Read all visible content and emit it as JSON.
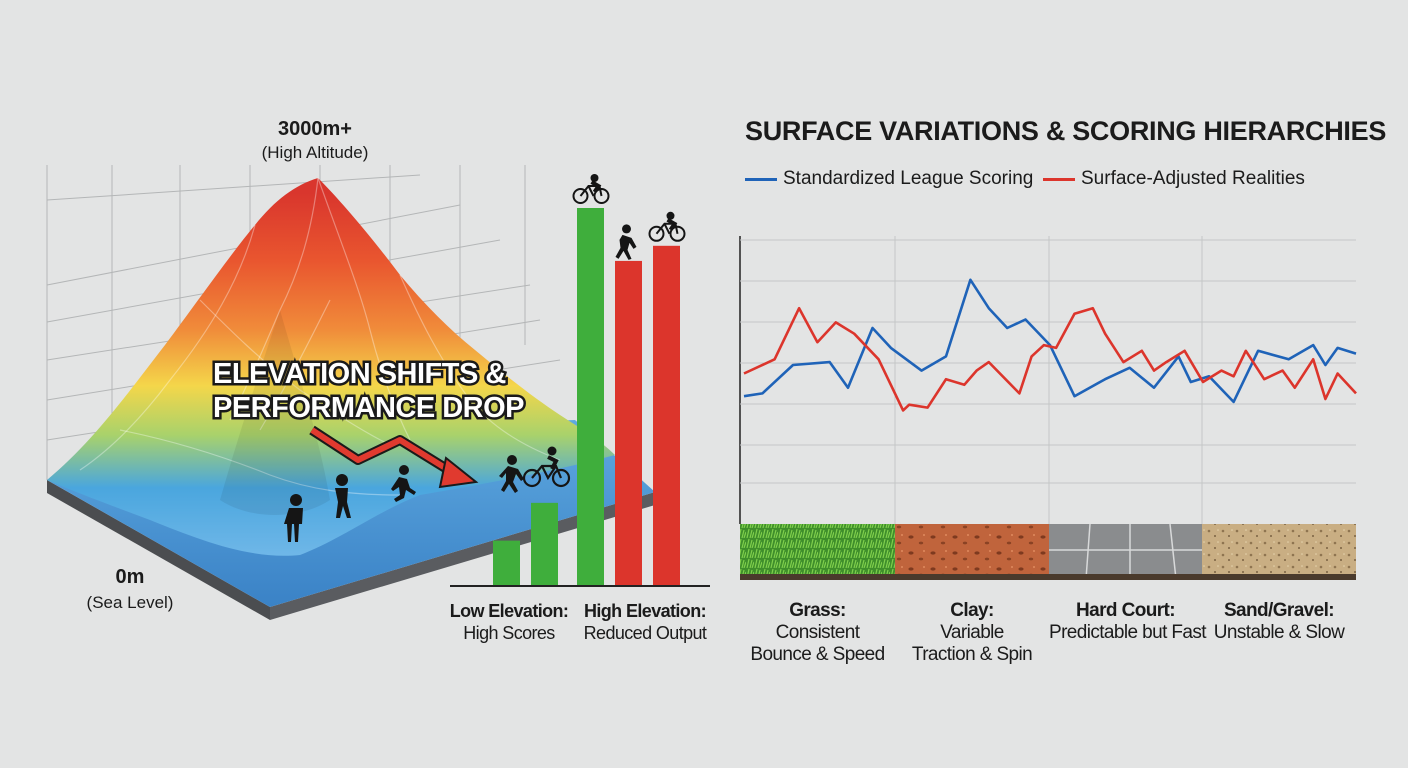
{
  "elevation_panel": {
    "top_label": "3000m+",
    "top_sublabel": "(High Altitude)",
    "bottom_label": "0m",
    "bottom_sublabel": "(Sea Level)",
    "headline_line1": "ELEVATION SHIFTS &",
    "headline_line2": "PERFORMANCE DROP",
    "icons": [
      "standing-person-icon",
      "walking-person-icon",
      "running-person-icon",
      "pushing-person-icon",
      "cyclist-icon"
    ],
    "gradient_colors": [
      "#d9362d",
      "#f08b3a",
      "#f4d64a",
      "#a9d26b",
      "#4aa6de"
    ]
  },
  "chart_data": [
    {
      "type": "bar",
      "title": "",
      "groups": [
        {
          "label": "Low Elevation:",
          "sublabel": "High Scores"
        },
        {
          "label": "High Elevation:",
          "sublabel": "Reduced Output"
        }
      ],
      "bars": [
        {
          "group": 0,
          "value": 12,
          "color": "#3fae3c"
        },
        {
          "group": 0,
          "value": 22,
          "color": "#3fae3c"
        },
        {
          "group": 0,
          "value": 100,
          "color": "#3fae3c",
          "icon": "cyclist-icon"
        },
        {
          "group": 1,
          "value": 86,
          "color": "#dc352c",
          "icon": "pushing-person-icon"
        },
        {
          "group": 1,
          "value": 90,
          "color": "#dc352c",
          "icon": "cyclist-icon"
        }
      ],
      "ylim": [
        0,
        100
      ]
    },
    {
      "type": "line",
      "title": "SURFACE VARIATIONS & SCORING HIERARCHIES",
      "ylim": [
        0,
        100
      ],
      "series": [
        {
          "name": "Standardized League Scoring",
          "color": "#1f63b8",
          "x": [
            0,
            3,
            8,
            14,
            17,
            21,
            24,
            29,
            33,
            37,
            40,
            43,
            46,
            50,
            54,
            59,
            63,
            67,
            71,
            73,
            76,
            80,
            84,
            89,
            93,
            95,
            97,
            100
          ],
          "y": [
            45,
            46,
            56,
            57,
            48,
            69,
            62,
            54,
            59,
            86,
            76,
            69,
            72,
            63,
            45,
            51,
            55,
            48,
            59,
            50,
            52,
            43,
            61,
            58,
            63,
            56,
            62,
            60
          ]
        },
        {
          "name": "Surface-Adjusted Realities",
          "color": "#dc352c",
          "x": [
            0,
            5,
            9,
            12,
            15,
            18,
            22,
            26,
            27,
            30,
            33,
            36,
            38,
            40,
            45,
            47,
            49,
            51,
            54,
            57,
            59,
            62,
            65,
            67,
            69,
            72,
            75,
            78,
            80,
            82,
            85,
            88,
            90,
            93,
            95,
            97,
            100
          ],
          "y": [
            53,
            58,
            76,
            64,
            71,
            67,
            58,
            40,
            42,
            41,
            51,
            49,
            54,
            57,
            46,
            59,
            63,
            62,
            74,
            76,
            67,
            57,
            61,
            54,
            57,
            61,
            50,
            54,
            52,
            61,
            51,
            54,
            48,
            58,
            44,
            53,
            46
          ]
        }
      ],
      "surfaces": [
        {
          "name": "Grass:",
          "line1": "Consistent",
          "line2": "Bounce & Speed"
        },
        {
          "name": "Clay:",
          "line1": "Variable",
          "line2": "Traction & Spin"
        },
        {
          "name": "Hard Court:",
          "line1": "Predictable but Fast",
          "line2": ""
        },
        {
          "name": "Sand/Gravel:",
          "line1": "Unstable & Slow",
          "line2": ""
        }
      ]
    }
  ]
}
